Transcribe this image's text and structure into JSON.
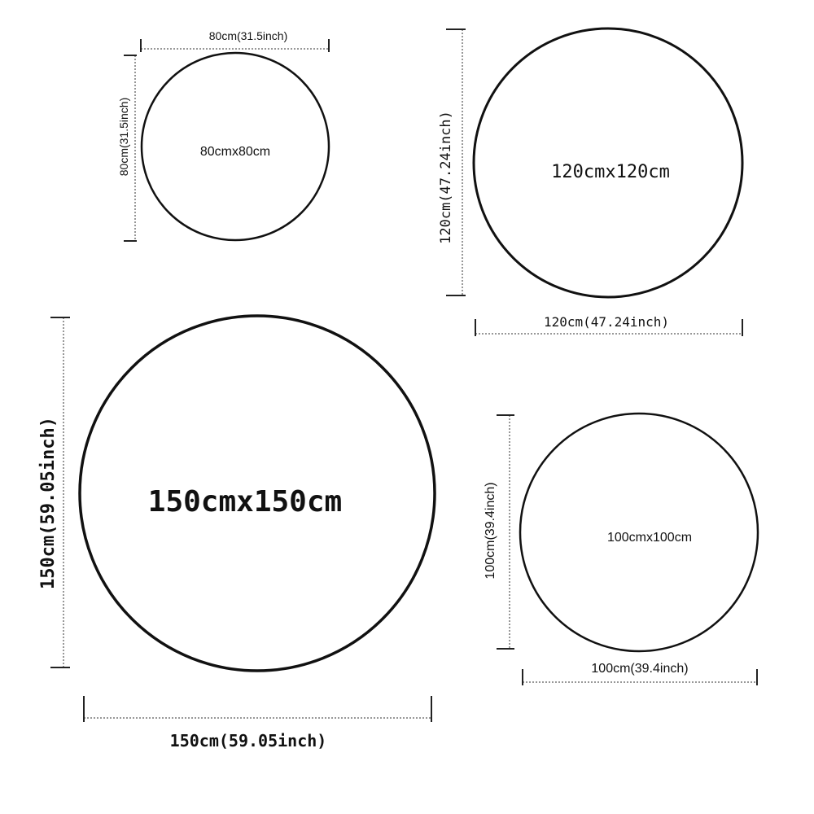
{
  "rugs": [
    {
      "size_label": "80cmx80cm",
      "width_label": "80cm(31.5inch)",
      "height_label": "80cm(31.5inch)"
    },
    {
      "size_label": "120cmx120cm",
      "width_label": "120cm(47.24inch)",
      "height_label": "120cm(47.24inch)"
    },
    {
      "size_label": "150cmx150cm",
      "width_label": "150cm(59.05inch)",
      "height_label": "150cm(59.05inch)"
    },
    {
      "size_label": "100cmx100cm",
      "width_label": "100cm(39.4inch)",
      "height_label": "100cm(39.4inch)"
    }
  ]
}
